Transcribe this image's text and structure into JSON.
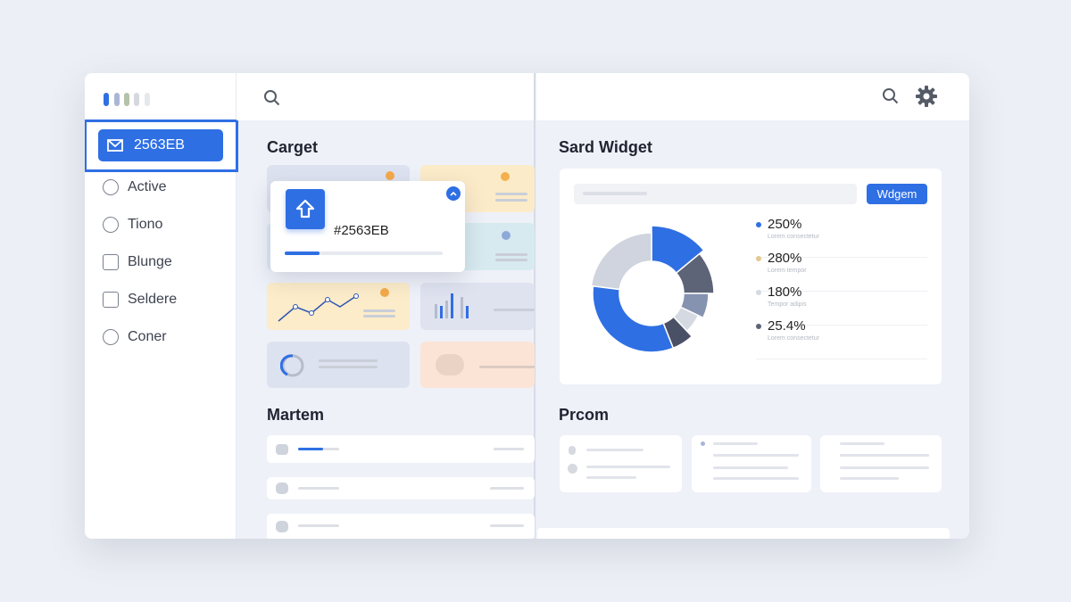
{
  "sidebar": {
    "logo_colors": [
      "#2f6fe4",
      "#a9b6d6",
      "#b4c2a9",
      "#d5d8de",
      "#e6e8ec"
    ],
    "selected": {
      "label": "2563EB",
      "icon": "mail-icon"
    },
    "items": [
      {
        "label": "Active",
        "icon": "hand-icon"
      },
      {
        "label": "Tiono",
        "icon": "face-icon"
      },
      {
        "label": "Blunge",
        "icon": "home-icon"
      },
      {
        "label": "Seldere",
        "icon": "inbox-icon"
      },
      {
        "label": "Coner",
        "icon": "clock-icon"
      }
    ]
  },
  "left": {
    "section1": "Carget",
    "popup": {
      "value": "#2563EB",
      "progress": 0.22,
      "icon": "upload-arrow-icon"
    },
    "section2": "Martem",
    "list_progress": 0.6
  },
  "right": {
    "section1": "Sard Widget",
    "widget_button": "Wdgem",
    "legend": [
      {
        "value": "250%",
        "sub": "Lorem consectetur",
        "color": "#2f6fe4"
      },
      {
        "value": "280%",
        "sub": "Lorem tempor",
        "color": "#e3c98f"
      },
      {
        "value": "180%",
        "sub": "Tempor adipis",
        "color": "#d5d9e2"
      },
      {
        "value": "25.4%",
        "sub": "Lorem consectetur",
        "color": "#5d6478"
      }
    ],
    "section2": "Prcom"
  },
  "chart_data": {
    "type": "pie",
    "values": [
      14,
      11,
      7,
      6,
      6,
      33,
      23
    ],
    "colors": [
      "#2f6fe4",
      "#5d6478",
      "#8592b0",
      "#d5d9e2",
      "#4a5166",
      "#2f6fe4",
      "#cfd4de"
    ]
  },
  "colors": {
    "accent": "#2f6fe4",
    "background": "#eef1f8"
  }
}
